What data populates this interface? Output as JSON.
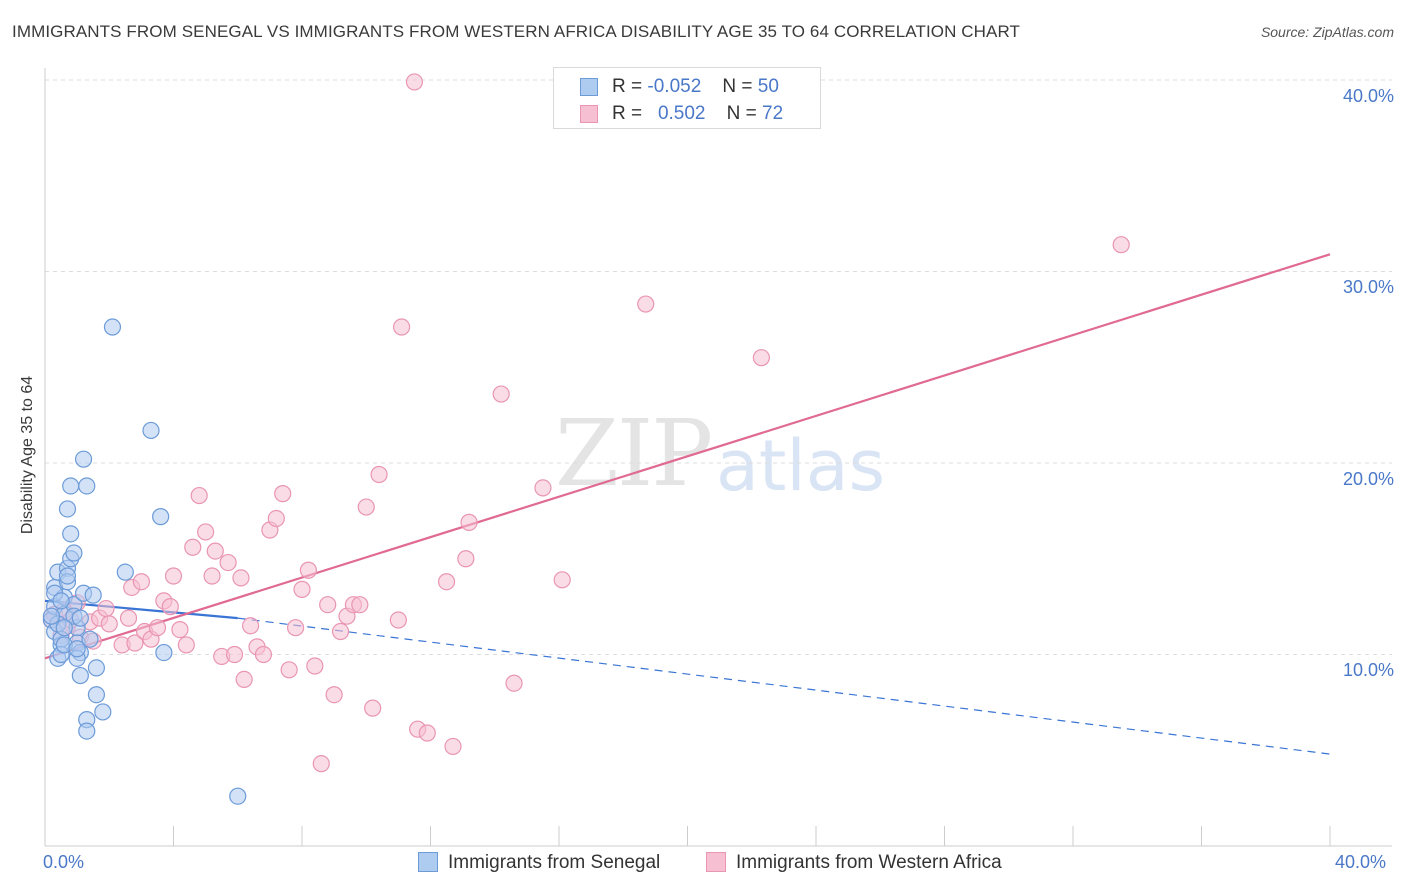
{
  "title": "IMMIGRANTS FROM SENEGAL VS IMMIGRANTS FROM WESTERN AFRICA DISABILITY AGE 35 TO 64 CORRELATION CHART",
  "source": "Source: ZipAtlas.com",
  "watermark": {
    "zip": "ZIP",
    "atlas": "atlas"
  },
  "legend": {
    "rows": [
      {
        "r_label": "R =",
        "r_value": "-0.052",
        "n_label": "N =",
        "n_value": "50"
      },
      {
        "r_label": "R =",
        "r_value": "0.502",
        "n_label": "N =",
        "n_value": "72"
      }
    ]
  },
  "colors": {
    "blue_fill": "#aecbf0",
    "blue_stroke": "#6c9bd8",
    "blue_line": "#3a74d4",
    "pink_fill": "#f6bfd2",
    "pink_stroke": "#e995b3",
    "pink_line": "#e06a92",
    "grid": "#dddddd",
    "tick_text": "#4a78c8"
  },
  "chart_data": {
    "type": "scatter",
    "title": "IMMIGRANTS FROM SENEGAL VS IMMIGRANTS FROM WESTERN AFRICA DISABILITY AGE 35 TO 64 CORRELATION CHART",
    "xlabel": "",
    "ylabel": "Disability Age 35 to 64",
    "xlim": [
      0,
      40
    ],
    "ylim": [
      0,
      40
    ],
    "x_tick_labels": [
      "0.0%",
      "40.0%"
    ],
    "y_ticks": [
      10,
      20,
      30,
      40
    ],
    "y_tick_labels": [
      "10.0%",
      "20.0%",
      "30.0%",
      "40.0%"
    ],
    "grid": true,
    "legend_position": "top-center",
    "series": [
      {
        "name": "Immigrants from Senegal",
        "r": -0.052,
        "n": 50,
        "trend": {
          "solid": [
            [
              0.0,
              12.8
            ],
            [
              6.0,
              11.9
            ]
          ],
          "dashed": [
            [
              6.0,
              11.9
            ],
            [
              40.0,
              4.8
            ]
          ]
        },
        "points": [
          [
            0.2,
            11.8
          ],
          [
            0.3,
            12.5
          ],
          [
            0.3,
            13.5
          ],
          [
            0.4,
            14.3
          ],
          [
            0.3,
            11.2
          ],
          [
            0.5,
            10.5
          ],
          [
            0.4,
            9.8
          ],
          [
            0.5,
            10.8
          ],
          [
            0.6,
            12.1
          ],
          [
            0.6,
            13.0
          ],
          [
            0.7,
            14.5
          ],
          [
            0.7,
            13.8
          ],
          [
            0.8,
            15.0
          ],
          [
            0.8,
            16.3
          ],
          [
            0.7,
            17.6
          ],
          [
            0.8,
            18.8
          ],
          [
            0.9,
            15.3
          ],
          [
            0.9,
            12.6
          ],
          [
            1.0,
            11.4
          ],
          [
            1.0,
            10.6
          ],
          [
            1.1,
            10.1
          ],
          [
            1.0,
            9.8
          ],
          [
            1.1,
            8.9
          ],
          [
            0.9,
            12.0
          ],
          [
            1.2,
            13.2
          ],
          [
            1.3,
            18.8
          ],
          [
            1.4,
            10.8
          ],
          [
            1.5,
            13.1
          ],
          [
            1.6,
            9.3
          ],
          [
            1.6,
            7.9
          ],
          [
            1.2,
            20.2
          ],
          [
            1.1,
            11.9
          ],
          [
            1.8,
            7.0
          ],
          [
            2.5,
            14.3
          ],
          [
            3.3,
            21.7
          ],
          [
            2.1,
            27.1
          ],
          [
            3.6,
            17.2
          ],
          [
            3.7,
            10.1
          ],
          [
            1.3,
            6.6
          ],
          [
            1.3,
            6.0
          ],
          [
            6.0,
            2.6
          ],
          [
            0.5,
            10.0
          ],
          [
            0.6,
            10.5
          ],
          [
            0.4,
            11.6
          ],
          [
            0.2,
            12.0
          ],
          [
            0.3,
            13.2
          ],
          [
            0.7,
            14.1
          ],
          [
            0.5,
            12.8
          ],
          [
            0.6,
            11.4
          ],
          [
            1.0,
            10.3
          ]
        ]
      },
      {
        "name": "Immigrants from Western Africa",
        "r": 0.502,
        "n": 72,
        "trend": {
          "solid": [
            [
              0.0,
              9.8
            ],
            [
              40.0,
              30.9
            ]
          ]
        },
        "points": [
          [
            0.2,
            11.8
          ],
          [
            0.3,
            12.1
          ],
          [
            0.5,
            11.0
          ],
          [
            0.6,
            12.3
          ],
          [
            0.7,
            11.5
          ],
          [
            0.8,
            11.8
          ],
          [
            1.0,
            12.7
          ],
          [
            1.1,
            10.9
          ],
          [
            1.4,
            11.7
          ],
          [
            1.5,
            10.7
          ],
          [
            1.7,
            11.9
          ],
          [
            1.9,
            12.4
          ],
          [
            2.0,
            11.6
          ],
          [
            2.4,
            10.5
          ],
          [
            2.6,
            11.9
          ],
          [
            2.7,
            13.5
          ],
          [
            2.8,
            10.6
          ],
          [
            3.0,
            13.8
          ],
          [
            3.1,
            11.2
          ],
          [
            3.3,
            10.8
          ],
          [
            3.5,
            11.4
          ],
          [
            3.7,
            12.8
          ],
          [
            3.9,
            12.5
          ],
          [
            4.0,
            14.1
          ],
          [
            4.2,
            11.3
          ],
          [
            4.4,
            10.5
          ],
          [
            4.6,
            15.6
          ],
          [
            4.8,
            18.3
          ],
          [
            5.0,
            16.4
          ],
          [
            5.2,
            14.1
          ],
          [
            5.3,
            15.4
          ],
          [
            5.5,
            9.9
          ],
          [
            5.7,
            14.8
          ],
          [
            5.9,
            10.0
          ],
          [
            6.1,
            14.0
          ],
          [
            6.2,
            8.7
          ],
          [
            6.4,
            11.5
          ],
          [
            6.6,
            10.4
          ],
          [
            6.8,
            10.0
          ],
          [
            7.0,
            16.5
          ],
          [
            7.2,
            17.1
          ],
          [
            7.4,
            18.4
          ],
          [
            7.6,
            9.2
          ],
          [
            7.8,
            11.4
          ],
          [
            8.0,
            13.4
          ],
          [
            8.2,
            14.4
          ],
          [
            8.4,
            9.4
          ],
          [
            8.6,
            4.3
          ],
          [
            8.8,
            12.6
          ],
          [
            9.0,
            7.9
          ],
          [
            9.2,
            11.2
          ],
          [
            9.4,
            12.0
          ],
          [
            9.6,
            12.6
          ],
          [
            9.8,
            12.6
          ],
          [
            10.0,
            17.7
          ],
          [
            10.2,
            7.2
          ],
          [
            10.4,
            19.4
          ],
          [
            11.0,
            11.8
          ],
          [
            11.1,
            27.1
          ],
          [
            11.5,
            39.9
          ],
          [
            11.6,
            6.1
          ],
          [
            11.9,
            5.9
          ],
          [
            12.5,
            13.8
          ],
          [
            12.7,
            5.2
          ],
          [
            13.1,
            15.0
          ],
          [
            13.2,
            16.9
          ],
          [
            14.2,
            23.6
          ],
          [
            14.6,
            8.5
          ],
          [
            15.5,
            18.7
          ],
          [
            16.1,
            13.9
          ],
          [
            18.7,
            28.3
          ],
          [
            22.3,
            25.5
          ],
          [
            33.5,
            31.4
          ]
        ]
      }
    ]
  },
  "bottom_legend": {
    "senegal": "Immigrants from Senegal",
    "western_africa": "Immigrants from Western Africa"
  }
}
